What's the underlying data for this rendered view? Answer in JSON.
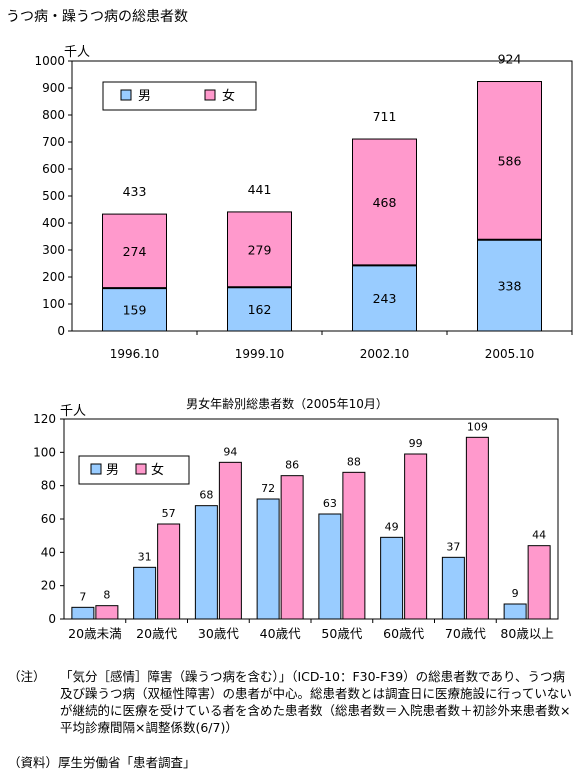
{
  "page_title": "うつ病・躁うつ病の総患者数",
  "note": {
    "label": "（注）",
    "text": "「気分［感情］障害（躁うつ病を含む）」（ICD-10：F30-F39）の総患者数であり、うつ病及び躁うつ病（双極性障害）の患者が中心。総患者数とは調査日に医療施設に行っていないが継続的に医療を受けている者を含めた患者数（総患者数＝入院患者数＋初診外来患者数×平均診療間隔×調整係数(6/7)）"
  },
  "source": "（資料）厚生労働省「患者調査」",
  "colors": {
    "male": "#99ccff",
    "female": "#ff99cc"
  },
  "chart_data": [
    {
      "type": "bar",
      "stacked": true,
      "title": "",
      "ylabel": "千人",
      "ylim": [
        0,
        1000
      ],
      "yticks": [
        0,
        100,
        200,
        300,
        400,
        500,
        600,
        700,
        800,
        900,
        1000
      ],
      "categories": [
        "1996.10",
        "1999.10",
        "2002.10",
        "2005.10"
      ],
      "series": [
        {
          "name": "男",
          "values": [
            159,
            162,
            243,
            338
          ]
        },
        {
          "name": "女",
          "values": [
            274,
            279,
            468,
            586
          ]
        }
      ],
      "totals": [
        433,
        441,
        711,
        924
      ],
      "legend": "top-left",
      "grid": false
    },
    {
      "type": "bar",
      "stacked": false,
      "title": "男女年齢別総患者数（2005年10月）",
      "ylabel": "千人",
      "ylim": [
        0,
        120
      ],
      "yticks": [
        0,
        20,
        40,
        60,
        80,
        100,
        120
      ],
      "categories": [
        "20歳未満",
        "20歳代",
        "30歳代",
        "40歳代",
        "50歳代",
        "60歳代",
        "70歳代",
        "80歳以上"
      ],
      "series": [
        {
          "name": "男",
          "values": [
            7,
            31,
            68,
            72,
            63,
            49,
            37,
            9
          ]
        },
        {
          "name": "女",
          "values": [
            8,
            57,
            94,
            86,
            88,
            99,
            109,
            44
          ]
        }
      ],
      "legend": "top-left",
      "grid": false
    }
  ]
}
